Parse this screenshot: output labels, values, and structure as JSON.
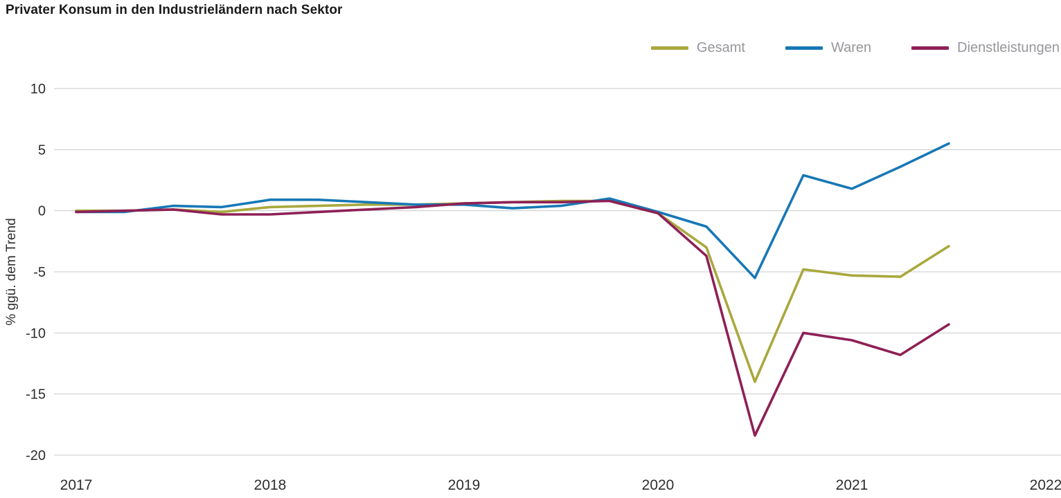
{
  "title": "Privater Konsum in den Industrieländern nach Sektor",
  "colors": {
    "gesamt": "#a9a83d",
    "waren": "#1778b5",
    "dienstleistungen": "#8e2056",
    "grid": "#c9c9c9",
    "axis_text": "#2e2e2e",
    "legend_text": "#97969b",
    "title_text": "#1a1a1a"
  },
  "chart_data": {
    "type": "line",
    "title": "Privater Konsum in den Industrieländern nach Sektor",
    "xlabel": "",
    "ylabel": "% ggü. dem Trend",
    "ylim": [
      -20,
      10
    ],
    "xlim": [
      2017,
      2022
    ],
    "y_ticks": [
      10,
      5,
      0,
      -5,
      -10,
      -15,
      -20
    ],
    "x_ticks": [
      2017,
      2018,
      2019,
      2020,
      2021,
      2022
    ],
    "grid": "horizontal",
    "legend_position": "top-right",
    "x_start": 2017.0,
    "x_step": 0.25,
    "x_unit": "quarter",
    "series": [
      {
        "name": "Gesamt",
        "color": "#a9a83d",
        "values": [
          0.0,
          0.0,
          0.1,
          -0.1,
          0.3,
          0.4,
          0.5,
          0.5,
          0.6,
          0.7,
          0.8,
          0.8,
          -0.2,
          -3.0,
          -14.0,
          -4.8,
          -5.3,
          -5.4,
          -2.9
        ]
      },
      {
        "name": "Waren",
        "color": "#1778b5",
        "values": [
          -0.1,
          -0.1,
          0.4,
          0.3,
          0.9,
          0.9,
          0.7,
          0.5,
          0.5,
          0.2,
          0.4,
          1.0,
          -0.1,
          -1.3,
          -5.5,
          2.9,
          1.8,
          3.6,
          5.5
        ]
      },
      {
        "name": "Dienstleistungen",
        "color": "#8e2056",
        "values": [
          -0.1,
          0.0,
          0.1,
          -0.3,
          -0.3,
          -0.1,
          0.1,
          0.3,
          0.6,
          0.7,
          0.7,
          0.8,
          -0.2,
          -3.7,
          -18.4,
          -10.0,
          -10.6,
          -11.8,
          -9.3
        ]
      }
    ]
  }
}
